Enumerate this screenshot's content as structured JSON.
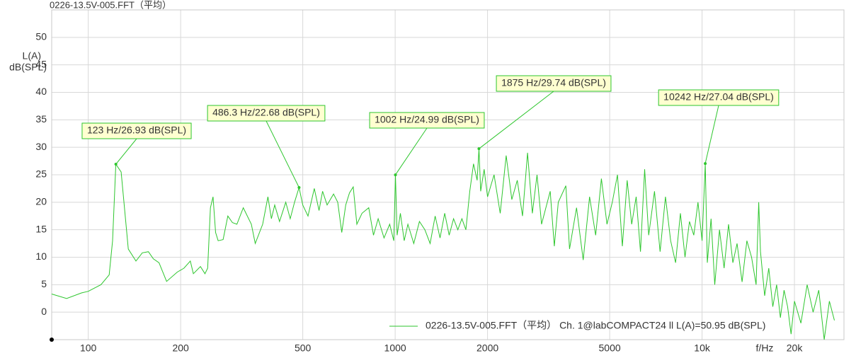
{
  "chart_data": {
    "type": "line",
    "title": "0226-13.5V-005.FFT（平均）",
    "x_label": "f/Hz",
    "y_label": [
      "L(A)",
      "dB(SPL)"
    ],
    "log_x": true,
    "grid": true,
    "xlim": [
      76,
      29000
    ],
    "ylim": [
      -5,
      55
    ],
    "xticks": [
      100,
      200,
      500,
      1000,
      2000,
      5000,
      {
        "value": 10000,
        "label": "10k"
      },
      {
        "value": 20000,
        "label": "20k"
      }
    ],
    "yticks": [
      0,
      5,
      10,
      15,
      20,
      25,
      30,
      35,
      40,
      45,
      50
    ],
    "legend": "bottom-right",
    "x": [
      76,
      85,
      95,
      100,
      110,
      117,
      120,
      123,
      128,
      135,
      143,
      150,
      157,
      163,
      170,
      180,
      195,
      205,
      215,
      220,
      232,
      240,
      245,
      250,
      255,
      260,
      265,
      275,
      285,
      295,
      305,
      320,
      340,
      350,
      370,
      385,
      395,
      405,
      420,
      440,
      455,
      470,
      486.3,
      500,
      520,
      545,
      565,
      580,
      600,
      630,
      650,
      670,
      690,
      710,
      730,
      750,
      780,
      820,
      850,
      880,
      920,
      960,
      990,
      1002,
      1015,
      1040,
      1070,
      1100,
      1150,
      1200,
      1250,
      1300,
      1350,
      1400,
      1450,
      1500,
      1550,
      1600,
      1650,
      1700,
      1750,
      1800,
      1850,
      1875,
      1900,
      1950,
      2000,
      2100,
      2200,
      2300,
      2400,
      2500,
      2600,
      2700,
      2800,
      2900,
      3000,
      3200,
      3300,
      3400,
      3600,
      3700,
      3900,
      4100,
      4300,
      4500,
      4700,
      4900,
      5100,
      5300,
      5500,
      5700,
      5900,
      6100,
      6300,
      6500,
      6700,
      7000,
      7300,
      7600,
      7900,
      8200,
      8500,
      8800,
      9100,
      9400,
      9700,
      10000,
      10242,
      10400,
      10700,
      11000,
      11400,
      11800,
      12200,
      12600,
      13000,
      13500,
      14000,
      14500,
      15000,
      15300,
      15500,
      16000,
      16500,
      17000,
      17500,
      18000,
      18500,
      19000,
      19500,
      20000,
      21000,
      22000,
      23000,
      24000,
      25000,
      26000,
      27000
    ],
    "series": [
      {
        "name": "0226-13.5V-005.FFT（平均） Ch. 1@labCOMPACT24 ll L(A)=50.95 dB(SPL)",
        "color": "#2ec62e",
        "values": [
          3.3,
          2.5,
          3.5,
          3.8,
          5,
          6.8,
          13,
          26.93,
          25.5,
          11.5,
          9.3,
          10.8,
          11,
          9.7,
          9,
          5.6,
          7.3,
          8,
          9.3,
          7,
          8.3,
          7,
          8,
          19,
          21,
          14.5,
          13,
          13.2,
          17.5,
          16.3,
          16,
          19,
          16,
          12.5,
          16,
          21,
          17,
          19.5,
          16.5,
          20,
          17,
          20,
          22.68,
          19.5,
          17.5,
          22.5,
          18.5,
          22,
          19.5,
          21.5,
          20,
          14.5,
          19.5,
          21.7,
          22.8,
          16,
          18,
          19,
          14,
          17,
          13.5,
          16,
          13,
          24.99,
          14,
          18,
          13,
          16,
          12.5,
          16.5,
          15,
          12.5,
          17.5,
          13.5,
          18,
          14,
          17,
          15,
          17,
          15,
          22,
          27,
          24,
          29.74,
          22,
          26,
          21,
          25,
          18,
          28.5,
          20.5,
          24,
          17.5,
          29,
          18,
          25,
          16,
          22,
          12,
          20,
          23,
          11.5,
          19,
          9.5,
          21,
          14,
          24.3,
          16,
          20,
          25,
          12,
          24,
          16,
          21,
          11,
          26,
          14,
          22,
          11,
          21,
          13,
          9,
          18,
          10,
          16.5,
          14,
          20,
          13,
          27.04,
          9,
          17,
          5,
          15,
          8,
          16,
          9,
          12.5,
          5.5,
          13,
          10,
          5,
          20,
          11,
          3,
          8,
          1,
          5,
          -1,
          4,
          1,
          -4,
          2,
          -2,
          5,
          0,
          4,
          -5,
          2,
          -1.5
        ]
      }
    ],
    "annotations": [
      {
        "x": 123,
        "y": 26.93,
        "label": "123 Hz/26.93 dB(SPL)"
      },
      {
        "x": 486.3,
        "y": 22.68,
        "label": "486.3 Hz/22.68 dB(SPL)"
      },
      {
        "x": 1002,
        "y": 24.99,
        "label": "1002 Hz/24.99 dB(SPL)"
      },
      {
        "x": 1875,
        "y": 29.74,
        "label": "1875 Hz/29.74 dB(SPL)"
      },
      {
        "x": 10242,
        "y": 27.04,
        "label": "10242 Hz/27.04 dB(SPL)"
      }
    ]
  }
}
